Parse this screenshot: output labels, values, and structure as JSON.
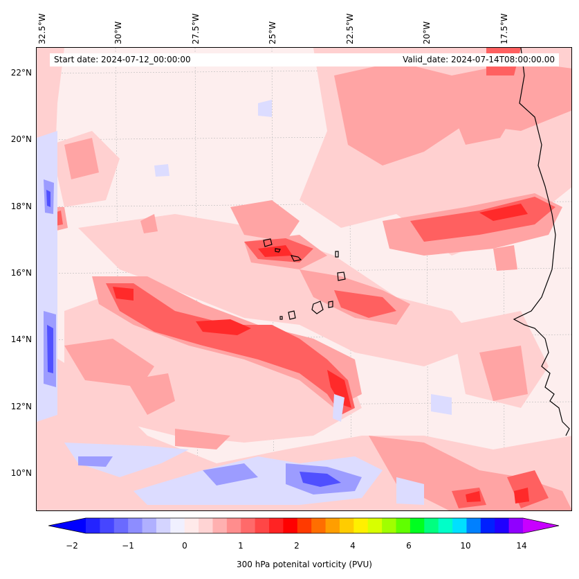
{
  "header": {
    "start_date": "Start date: 2024-07-12_00:00:00",
    "valid_date": "Valid_date: 2024-07-14T08:00:00.00"
  },
  "axes": {
    "lon_labels": [
      "32.5°W",
      "30°W",
      "27.5°W",
      "25°W",
      "22.5°W",
      "20°W",
      "17.5°W"
    ],
    "lat_labels": [
      "22°N",
      "20°N",
      "18°N",
      "16°N",
      "14°N",
      "12°N",
      "10°N"
    ]
  },
  "colorbar": {
    "label": "300 hPa potenital vorticity (PVU)",
    "ticks": [
      "−2",
      "−1",
      "0",
      "1",
      "2",
      "4",
      "6",
      "10",
      "14"
    ],
    "colors": [
      "#0000ff",
      "#2323ff",
      "#4646ff",
      "#6a6aff",
      "#8d8dff",
      "#b0b0ff",
      "#d4d4ff",
      "#f0f0ff",
      "#ffeaea",
      "#ffd4d4",
      "#ffb0b0",
      "#ff8d8d",
      "#ff6a6a",
      "#ff4646",
      "#ff2323",
      "#ff0000",
      "#ff3a00",
      "#ff6e00",
      "#ff9e00",
      "#ffcc00",
      "#fff000",
      "#d8ff00",
      "#a0ff00",
      "#60ff00",
      "#00ff20",
      "#00ff80",
      "#00ffc8",
      "#00e0ff",
      "#0080ff",
      "#0020ff",
      "#2000ff",
      "#9000ff",
      "#c800ff"
    ]
  },
  "map_colors": {
    "background": "#fdeeee",
    "light_red": "#ffd0d0",
    "mid_red": "#ffa4a4",
    "red": "#ff6060",
    "deep_red": "#ff2a2a",
    "light_blue": "#dcdcff",
    "mid_blue": "#9c9cff",
    "blue": "#5050ff",
    "coast": "#000000"
  }
}
